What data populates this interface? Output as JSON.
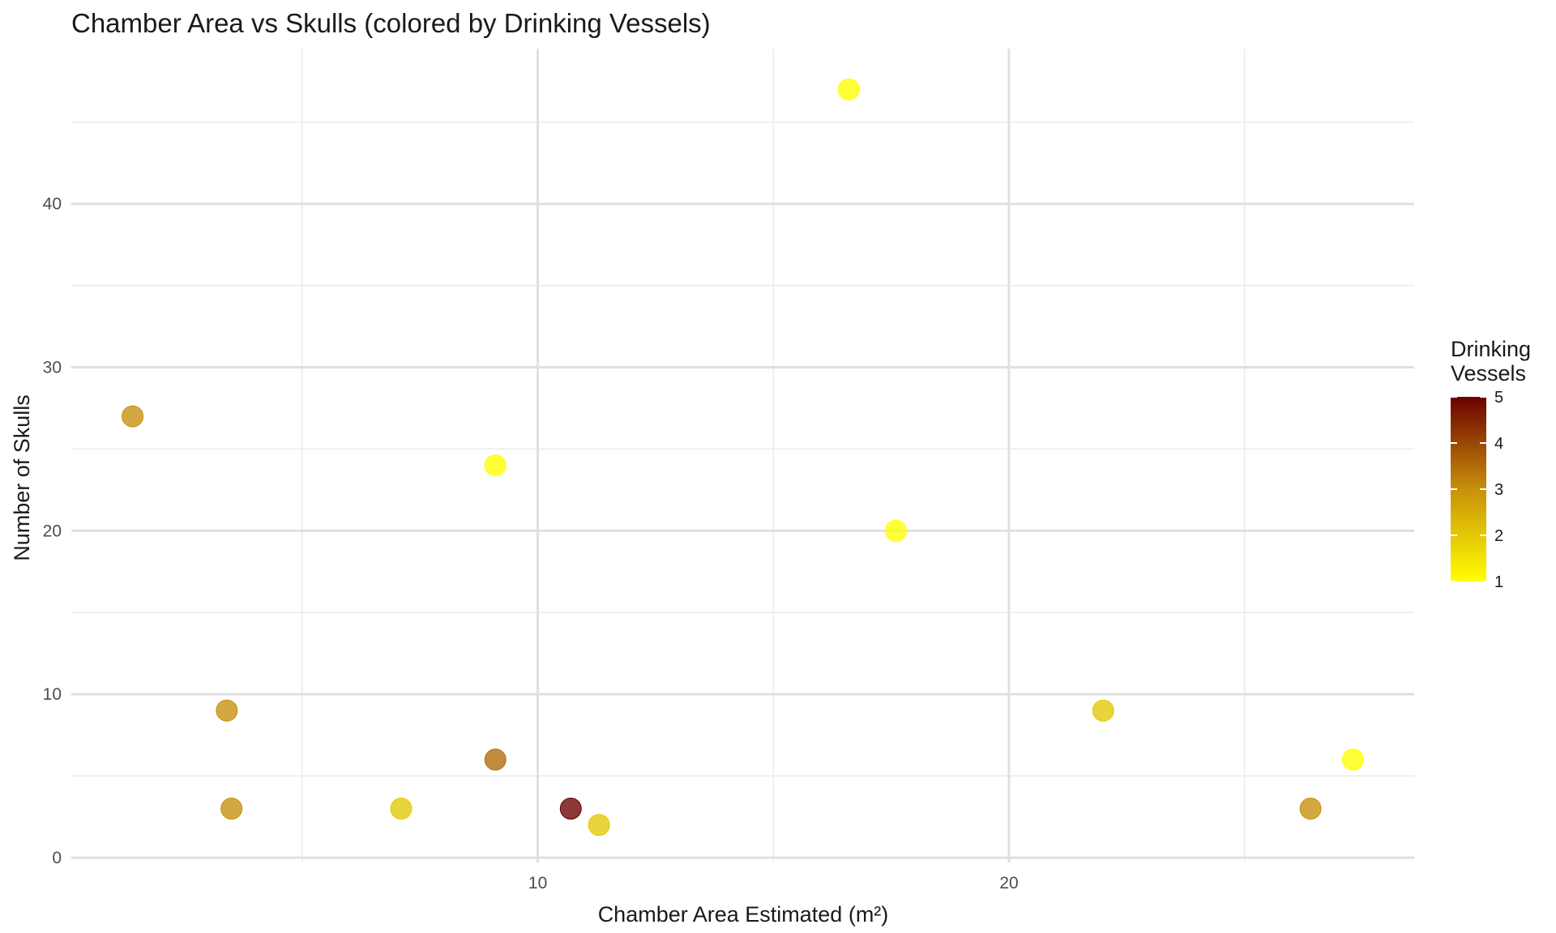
{
  "chart_data": {
    "type": "scatter",
    "title": "Chamber Area vs Skulls (colored by Drinking Vessels)",
    "xlabel": "Chamber Area Estimated (m²)",
    "ylabel": "Number of Skulls",
    "x_ticks": [
      10,
      20
    ],
    "y_ticks": [
      0,
      10,
      20,
      30,
      40
    ],
    "xlim": [
      0.1,
      28.6
    ],
    "ylim": [
      -0.3,
      49.5
    ],
    "grid": true,
    "legend": {
      "title_lines": [
        "Drinking",
        "Vessels"
      ],
      "ticks": [
        5,
        4,
        3,
        2,
        1
      ],
      "placement": "right",
      "low_color": "#ffff00",
      "high_color": "#6b0000"
    },
    "color_range": [
      1,
      5
    ],
    "points": [
      {
        "x": 1.4,
        "y": 27,
        "vessels": 3
      },
      {
        "x": 3.4,
        "y": 9,
        "vessels": 3
      },
      {
        "x": 3.5,
        "y": 3,
        "vessels": 3
      },
      {
        "x": 7.1,
        "y": 3,
        "vessels": 2
      },
      {
        "x": 9.1,
        "y": 24,
        "vessels": 1
      },
      {
        "x": 9.1,
        "y": 6,
        "vessels": 3.5
      },
      {
        "x": 10.7,
        "y": 3,
        "vessels": 5
      },
      {
        "x": 11.3,
        "y": 2,
        "vessels": 2
      },
      {
        "x": 16.6,
        "y": 47,
        "vessels": 1
      },
      {
        "x": 17.6,
        "y": 20,
        "vessels": 1
      },
      {
        "x": 22.0,
        "y": 9,
        "vessels": 2
      },
      {
        "x": 26.4,
        "y": 3,
        "vessels": 3
      },
      {
        "x": 27.3,
        "y": 6,
        "vessels": 1
      }
    ]
  }
}
